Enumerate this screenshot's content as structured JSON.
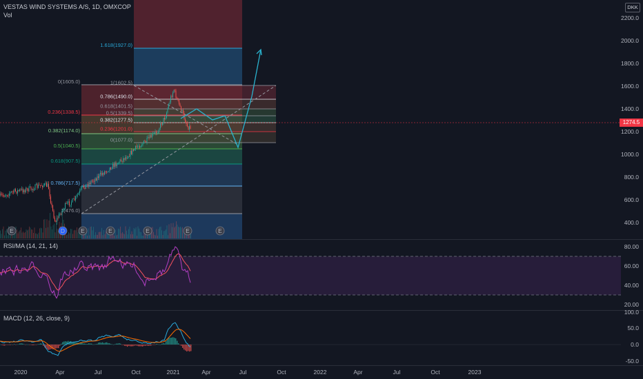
{
  "header": {
    "symbol_line": "VESTAS WIND SYSTEMS A/S, 1D, OMXCOP",
    "vol_label": "Vol",
    "currency": "DKK"
  },
  "price_axis": [
    "2200.0",
    "2000.0",
    "1800.0",
    "1600.0",
    "1400.0",
    "1200.0",
    "1000.0",
    "800.0",
    "600.0",
    "400.0"
  ],
  "current_price": "1274.5",
  "rsi": {
    "label": "RSI/MA (14, 21, 14)",
    "ticks": [
      "80.00",
      "60.00",
      "40.00",
      "20.00"
    ]
  },
  "macd": {
    "label": "MACD (12, 26, close, 9)",
    "ticks": [
      "100.0",
      "50.0",
      "0.0",
      "-50.0"
    ]
  },
  "time_axis": [
    "2020",
    "Apr",
    "Jul",
    "Oct",
    "2021",
    "Apr",
    "Jul",
    "Oct",
    "2022",
    "Apr",
    "Jul",
    "Oct",
    "2023"
  ],
  "earnings_marker": "E",
  "dividend_marker": "D",
  "fib_large": [
    {
      "label": "1.618(1927.0)",
      "color": "#2aa9d9"
    },
    {
      "label": "0(1605.0)",
      "color": "#9598a1"
    },
    {
      "label": "0.236(1338.5)",
      "color": "#f23645"
    },
    {
      "label": "0.382(1174.0)",
      "color": "#81c784"
    },
    {
      "label": "0.5(1040.5)",
      "color": "#4caf50"
    },
    {
      "label": "0.618(907.5)",
      "color": "#089981"
    },
    {
      "label": "0.786(717.5)",
      "color": "#64b5f6"
    },
    {
      "label": "1(476.0)",
      "color": "#9598a1"
    }
  ],
  "fib_small": [
    {
      "label": "1(1602.5)",
      "color": "#9598a1"
    },
    {
      "label": "0.786(1490.0)",
      "color": "#e0e3eb"
    },
    {
      "label": "0.618(1401.5)",
      "color": "#9598a1"
    },
    {
      "label": "0.5(1339.5)",
      "color": "#9598a1"
    },
    {
      "label": "0.382(1277.5)",
      "color": "#e0e3eb"
    },
    {
      "label": "0.236(1201.0)",
      "color": "#f23645"
    },
    {
      "label": "0(1077.0)",
      "color": "#9598a1"
    }
  ]
}
